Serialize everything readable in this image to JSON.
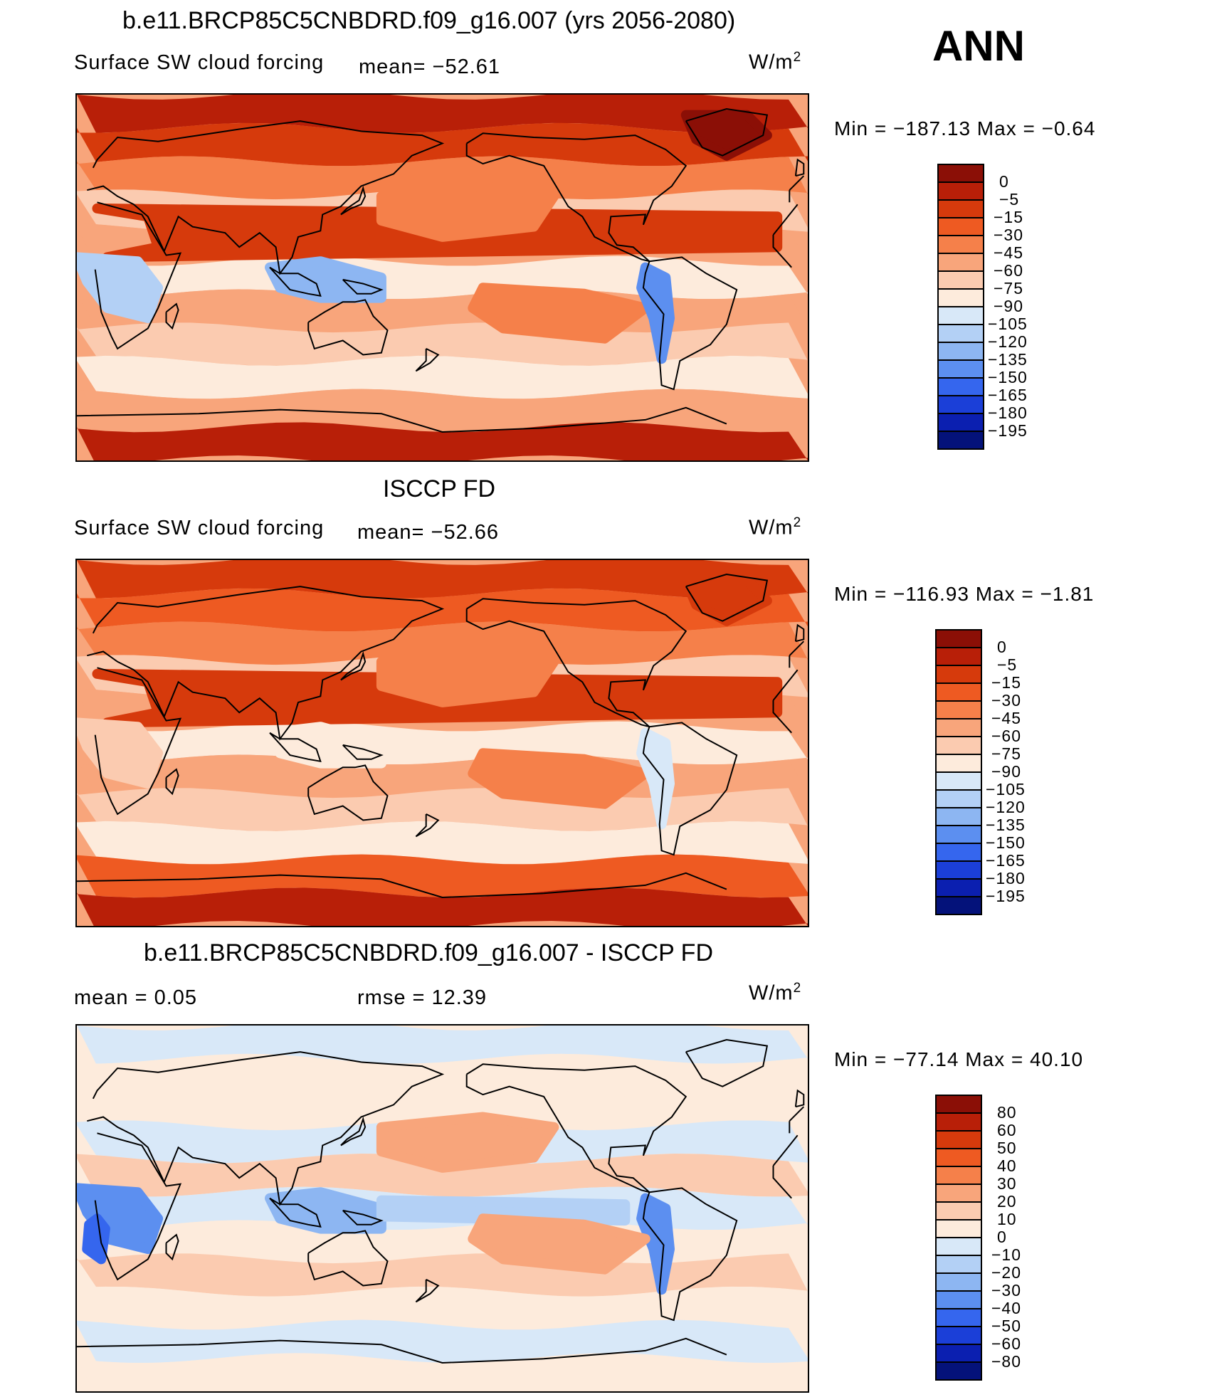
{
  "season": "ANN",
  "panels": [
    {
      "title": "b.e11.BRCP85C5CNBDRD.f09_g16.007 (yrs 2056-2080)",
      "variable": "Surface SW cloud forcing",
      "stat_left": "mean=  −52.61",
      "stat_mid": "",
      "units": "W/m",
      "units_exp": "2",
      "minmax": "Min  =  −187.13  Max  =    −0.64",
      "scale": "forcing"
    },
    {
      "title": "ISCCP FD",
      "variable": "Surface SW cloud forcing",
      "stat_left": "mean=  −52.66",
      "stat_mid": "",
      "units": "W/m",
      "units_exp": "2",
      "minmax": "Min  =  −116.93  Max  =    −1.81",
      "scale": "forcing"
    },
    {
      "title": "b.e11.BRCP85C5CNBDRD.f09_g16.007 - ISCCP FD",
      "variable": "mean  =      0.05",
      "stat_left": "",
      "stat_mid": "rmse  =     12.39",
      "units": "W/m",
      "units_exp": "2",
      "minmax": "Min  =  −77.14  Max  =     40.10",
      "scale": "difference"
    }
  ],
  "colorbars": {
    "forcing": {
      "labels": [
        "0",
        "−5",
        "−15",
        "−30",
        "−45",
        "−60",
        "−75",
        "−90",
        "−105",
        "−120",
        "−135",
        "−150",
        "−165",
        "−180",
        "−195"
      ],
      "colors": [
        "#8b0f06",
        "#b81f08",
        "#d63a0c",
        "#ee5a22",
        "#f5804a",
        "#f8a57b",
        "#fbcbb0",
        "#fdebdc",
        "#d8e8f8",
        "#b3d0f5",
        "#8db6f2",
        "#5c8ff0",
        "#3566ee",
        "#1b3fd8",
        "#0b1fb0",
        "#04127a"
      ]
    },
    "difference": {
      "labels": [
        "80",
        "60",
        "50",
        "40",
        "30",
        "20",
        "10",
        "0",
        "−10",
        "−20",
        "−30",
        "−40",
        "−50",
        "−60",
        "−80"
      ],
      "colors": [
        "#8b0f06",
        "#b81f08",
        "#d63a0c",
        "#ee5a22",
        "#f5804a",
        "#f8a57b",
        "#fbcbb0",
        "#fdebdc",
        "#d8e8f8",
        "#b3d0f5",
        "#8db6f2",
        "#5c8ff0",
        "#3566ee",
        "#1b3fd8",
        "#0b1fb0",
        "#04127a"
      ]
    }
  },
  "map_fields": {
    "model": {
      "background": "#f8a57b",
      "bands": [
        "#b81f08",
        "#d63a0c",
        "#f5804a",
        "#fbcbb0",
        "#f8a57b",
        "#fdebdc",
        "#f8a57b",
        "#fbcbb0",
        "#fdebdc",
        "#f8a57b",
        "#b81f08"
      ],
      "blobs": [
        {
          "fill": "#d63a0c",
          "region": "north-africa"
        },
        {
          "fill": "#f5804a",
          "region": "north-pacific"
        },
        {
          "fill": "#f5804a",
          "region": "south-pacific"
        },
        {
          "fill": "#8db6f2",
          "region": "maritime-continent"
        },
        {
          "fill": "#b3d0f5",
          "region": "central-africa"
        },
        {
          "fill": "#5c8ff0",
          "region": "andes"
        },
        {
          "fill": "#8b0f06",
          "region": "greenland"
        }
      ]
    },
    "obs": {
      "background": "#f8a57b",
      "bands": [
        "#d63a0c",
        "#ee5a22",
        "#f5804a",
        "#fbcbb0",
        "#f8a57b",
        "#fdebdc",
        "#f8a57b",
        "#fbcbb0",
        "#fdebdc",
        "#ee5a22",
        "#b81f08"
      ],
      "blobs": [
        {
          "fill": "#d63a0c",
          "region": "north-africa"
        },
        {
          "fill": "#f5804a",
          "region": "north-pacific"
        },
        {
          "fill": "#f5804a",
          "region": "south-pacific"
        },
        {
          "fill": "#fdebdc",
          "region": "maritime-continent"
        },
        {
          "fill": "#fbcbb0",
          "region": "central-africa"
        },
        {
          "fill": "#d8e8f8",
          "region": "andes"
        },
        {
          "fill": "#d63a0c",
          "region": "greenland"
        }
      ]
    },
    "diff": {
      "background": "#fdebdc",
      "bands": [
        "#d8e8f8",
        "#fdebdc",
        "#fdebdc",
        "#d8e8f8",
        "#fbcbb0",
        "#d8e8f8",
        "#fdebdc",
        "#fbcbb0",
        "#fdebdc",
        "#d8e8f8",
        "#fdebdc"
      ],
      "blobs": [
        {
          "fill": "#5c8ff0",
          "region": "central-africa"
        },
        {
          "fill": "#8db6f2",
          "region": "maritime-continent"
        },
        {
          "fill": "#b3d0f5",
          "region": "equatorial-pacific"
        },
        {
          "fill": "#5c8ff0",
          "region": "andes"
        },
        {
          "fill": "#f8a57b",
          "region": "south-pacific"
        },
        {
          "fill": "#f8a57b",
          "region": "north-pacific"
        },
        {
          "fill": "#3566ee",
          "region": "south-atlantic-coast"
        }
      ]
    }
  }
}
